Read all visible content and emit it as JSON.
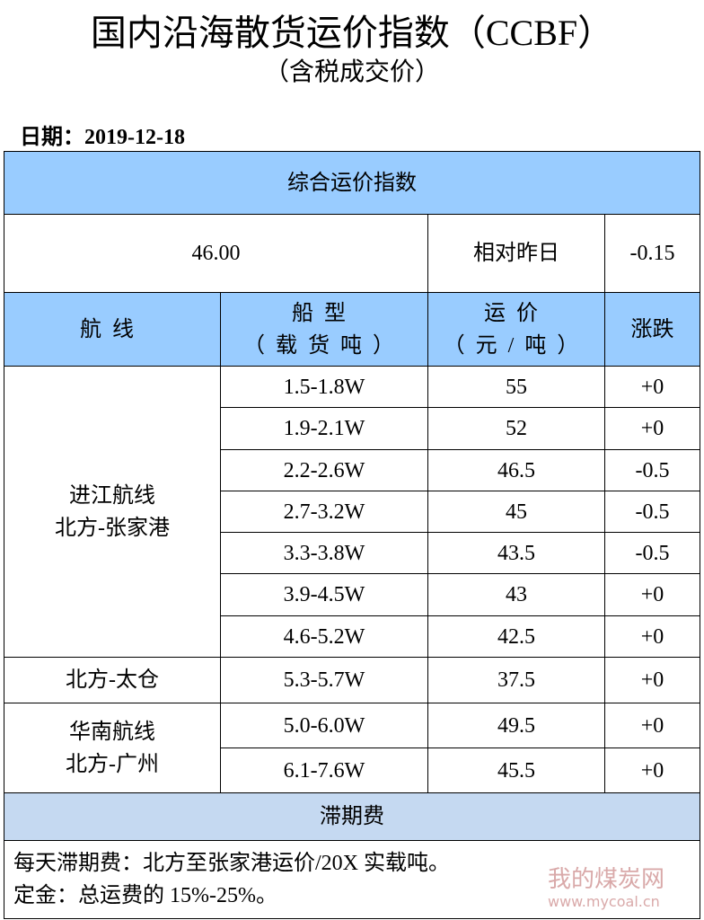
{
  "header": {
    "title": "国内沿海散货运价指数（CCBF）",
    "subtitle": "（含税成交价）",
    "date": "日期：2019-12-18"
  },
  "table": {
    "section_title": "综合运价指数",
    "index_value": "46.00",
    "change_label": "相对昨日",
    "change_value": "-0.15",
    "columns": [
      {
        "label": "航线"
      },
      {
        "label": "船型",
        "unit": "（载货吨）"
      },
      {
        "label": "运价",
        "unit": "（元/吨）"
      },
      {
        "label": "涨跌"
      }
    ],
    "groups": [
      {
        "route": [
          "进江航线",
          "北方-张家港"
        ],
        "rows": [
          [
            "1.5-1.8W",
            "55",
            "+0"
          ],
          [
            "1.9-2.1W",
            "52",
            "+0"
          ],
          [
            "2.2-2.6W",
            "46.5",
            "-0.5"
          ],
          [
            "2.7-3.2W",
            "45",
            "-0.5"
          ],
          [
            "3.3-3.8W",
            "43.5",
            "-0.5"
          ],
          [
            "3.9-4.5W",
            "43",
            "+0"
          ],
          [
            "4.6-5.2W",
            "42.5",
            "+0"
          ]
        ]
      },
      {
        "route": [
          "北方-太仓"
        ],
        "rows": [
          [
            "5.3-5.7W",
            "37.5",
            "+0"
          ]
        ]
      },
      {
        "route": [
          "华南航线",
          "北方-广州"
        ],
        "rows": [
          [
            "5.0-6.0W",
            "49.5",
            "+0"
          ],
          [
            "6.1-7.6W",
            "45.5",
            "+0"
          ]
        ]
      }
    ],
    "demurrage_title": "滞期费",
    "notes": [
      "每天滞期费：北方至张家港运价/20X 实载吨。",
      "定金：总运费的 15%-25%。"
    ]
  },
  "watermark": {
    "name": "我的煤炭网",
    "url": "www.mycoal.cn"
  }
}
